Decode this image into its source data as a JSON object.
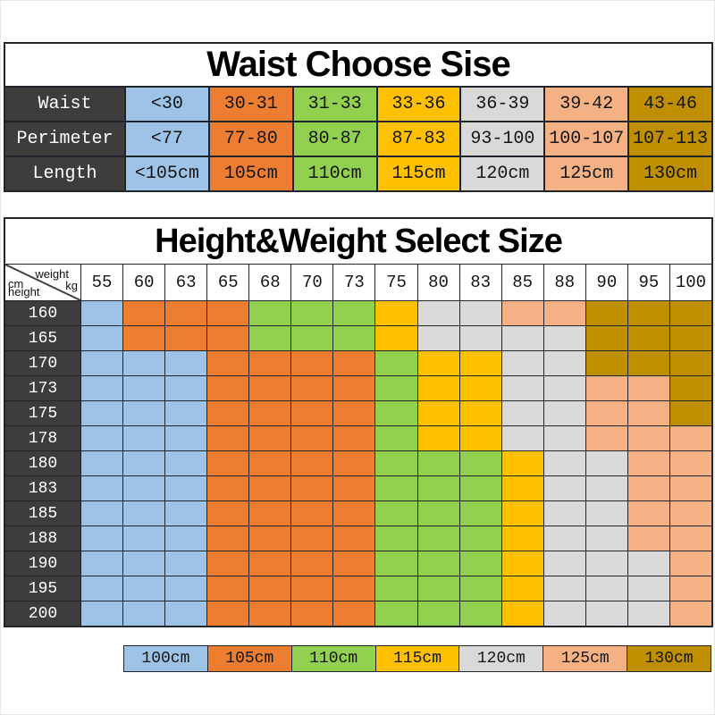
{
  "colors": {
    "blue": "#9DC3E6",
    "orange": "#ED7D31",
    "green": "#92D050",
    "yellow": "#FFC000",
    "gray": "#D9D9D9",
    "peach": "#F4B183",
    "olive": "#BF8F00",
    "label_dark": "#3D3D3D",
    "grid_line": "#20242B"
  },
  "waist_table": {
    "title": "Waist Choose Sise",
    "column_colors": [
      "blue",
      "orange",
      "green",
      "yellow",
      "gray",
      "peach",
      "olive"
    ],
    "rows": [
      {
        "label": "Waist",
        "values": [
          "<30",
          "30-31",
          "31-33",
          "33-36",
          "36-39",
          "39-42",
          "43-46"
        ]
      },
      {
        "label": "Perimeter",
        "values": [
          "<77",
          "77-80",
          "80-87",
          "87-83",
          "93-100",
          "100-107",
          "107-113"
        ]
      },
      {
        "label": "Length",
        "values": [
          "<105cm",
          "105cm",
          "110cm",
          "115cm",
          "120cm",
          "125cm",
          "130cm"
        ]
      }
    ]
  },
  "size_grid": {
    "title": "Height&Weight Select Size",
    "corner": {
      "weight_label": "weight",
      "kg_label": "kg",
      "cm_label": "cm",
      "height_label": "height"
    },
    "weights": [
      "55",
      "60",
      "63",
      "65",
      "68",
      "70",
      "73",
      "75",
      "80",
      "83",
      "85",
      "88",
      "90",
      "95",
      "100"
    ],
    "heights": [
      "160",
      "165",
      "170",
      "173",
      "175",
      "178",
      "180",
      "183",
      "185",
      "188",
      "190",
      "195",
      "200"
    ],
    "cells": [
      [
        "blue",
        "orange",
        "orange",
        "orange",
        "green",
        "green",
        "green",
        "yellow",
        "gray",
        "gray",
        "peach",
        "peach",
        "olive",
        "olive",
        "olive"
      ],
      [
        "blue",
        "orange",
        "orange",
        "orange",
        "green",
        "green",
        "green",
        "yellow",
        "gray",
        "gray",
        "gray",
        "gray",
        "olive",
        "olive",
        "olive"
      ],
      [
        "blue",
        "blue",
        "blue",
        "orange",
        "orange",
        "orange",
        "orange",
        "green",
        "yellow",
        "yellow",
        "gray",
        "gray",
        "olive",
        "olive",
        "olive"
      ],
      [
        "blue",
        "blue",
        "blue",
        "orange",
        "orange",
        "orange",
        "orange",
        "green",
        "yellow",
        "yellow",
        "gray",
        "gray",
        "peach",
        "peach",
        "olive"
      ],
      [
        "blue",
        "blue",
        "blue",
        "orange",
        "orange",
        "orange",
        "orange",
        "green",
        "yellow",
        "yellow",
        "gray",
        "gray",
        "peach",
        "peach",
        "olive"
      ],
      [
        "blue",
        "blue",
        "blue",
        "orange",
        "orange",
        "orange",
        "orange",
        "green",
        "yellow",
        "yellow",
        "gray",
        "gray",
        "peach",
        "peach",
        "peach"
      ],
      [
        "blue",
        "blue",
        "blue",
        "orange",
        "orange",
        "orange",
        "orange",
        "green",
        "green",
        "green",
        "yellow",
        "gray",
        "gray",
        "peach",
        "peach"
      ],
      [
        "blue",
        "blue",
        "blue",
        "orange",
        "orange",
        "orange",
        "orange",
        "green",
        "green",
        "green",
        "yellow",
        "gray",
        "gray",
        "peach",
        "peach"
      ],
      [
        "blue",
        "blue",
        "blue",
        "orange",
        "orange",
        "orange",
        "orange",
        "green",
        "green",
        "green",
        "yellow",
        "gray",
        "gray",
        "peach",
        "peach"
      ],
      [
        "blue",
        "blue",
        "blue",
        "orange",
        "orange",
        "orange",
        "orange",
        "green",
        "green",
        "green",
        "yellow",
        "gray",
        "gray",
        "peach",
        "peach"
      ],
      [
        "blue",
        "blue",
        "blue",
        "orange",
        "orange",
        "orange",
        "orange",
        "green",
        "green",
        "green",
        "yellow",
        "gray",
        "gray",
        "gray",
        "peach"
      ],
      [
        "blue",
        "blue",
        "blue",
        "orange",
        "orange",
        "orange",
        "orange",
        "green",
        "green",
        "green",
        "yellow",
        "gray",
        "gray",
        "gray",
        "peach"
      ],
      [
        "blue",
        "blue",
        "blue",
        "orange",
        "orange",
        "orange",
        "orange",
        "green",
        "green",
        "green",
        "yellow",
        "gray",
        "gray",
        "gray",
        "peach"
      ]
    ]
  },
  "legend": {
    "items": [
      {
        "label": "100cm",
        "color": "blue"
      },
      {
        "label": "105cm",
        "color": "orange"
      },
      {
        "label": "110cm",
        "color": "green"
      },
      {
        "label": "115cm",
        "color": "yellow"
      },
      {
        "label": "120cm",
        "color": "gray"
      },
      {
        "label": "125cm",
        "color": "peach"
      },
      {
        "label": "130cm",
        "color": "olive"
      }
    ]
  },
  "chart_data": [
    {
      "type": "table",
      "title": "Waist Choose Sise",
      "rows": [
        [
          "Waist",
          "<30",
          "30-31",
          "31-33",
          "33-36",
          "36-39",
          "39-42",
          "43-46"
        ],
        [
          "Perimeter",
          "<77",
          "77-80",
          "80-87",
          "87-83",
          "93-100",
          "100-107",
          "107-113"
        ],
        [
          "Length",
          "<105cm",
          "105cm",
          "110cm",
          "115cm",
          "120cm",
          "125cm",
          "130cm"
        ]
      ]
    },
    {
      "type": "heatmap",
      "title": "Height&Weight Select Size",
      "xlabel": "weight kg",
      "ylabel": "cm height",
      "x": [
        55,
        60,
        63,
        65,
        68,
        70,
        73,
        75,
        80,
        83,
        85,
        88,
        90,
        95,
        100
      ],
      "y": [
        160,
        165,
        170,
        173,
        175,
        178,
        180,
        183,
        185,
        188,
        190,
        195,
        200
      ],
      "values": [
        [
          "100cm",
          "105cm",
          "105cm",
          "105cm",
          "110cm",
          "110cm",
          "110cm",
          "115cm",
          "120cm",
          "120cm",
          "125cm",
          "125cm",
          "130cm",
          "130cm",
          "130cm"
        ],
        [
          "100cm",
          "105cm",
          "105cm",
          "105cm",
          "110cm",
          "110cm",
          "110cm",
          "115cm",
          "120cm",
          "120cm",
          "120cm",
          "120cm",
          "130cm",
          "130cm",
          "130cm"
        ],
        [
          "100cm",
          "100cm",
          "100cm",
          "105cm",
          "105cm",
          "105cm",
          "105cm",
          "110cm",
          "115cm",
          "115cm",
          "120cm",
          "120cm",
          "130cm",
          "130cm",
          "130cm"
        ],
        [
          "100cm",
          "100cm",
          "100cm",
          "105cm",
          "105cm",
          "105cm",
          "105cm",
          "110cm",
          "115cm",
          "115cm",
          "120cm",
          "120cm",
          "125cm",
          "125cm",
          "130cm"
        ],
        [
          "100cm",
          "100cm",
          "100cm",
          "105cm",
          "105cm",
          "105cm",
          "105cm",
          "110cm",
          "115cm",
          "115cm",
          "120cm",
          "120cm",
          "125cm",
          "125cm",
          "130cm"
        ],
        [
          "100cm",
          "100cm",
          "100cm",
          "105cm",
          "105cm",
          "105cm",
          "105cm",
          "110cm",
          "115cm",
          "115cm",
          "120cm",
          "120cm",
          "125cm",
          "125cm",
          "125cm"
        ],
        [
          "100cm",
          "100cm",
          "100cm",
          "105cm",
          "105cm",
          "105cm",
          "105cm",
          "110cm",
          "110cm",
          "110cm",
          "115cm",
          "120cm",
          "120cm",
          "125cm",
          "125cm"
        ],
        [
          "100cm",
          "100cm",
          "100cm",
          "105cm",
          "105cm",
          "105cm",
          "105cm",
          "110cm",
          "110cm",
          "110cm",
          "115cm",
          "120cm",
          "120cm",
          "125cm",
          "125cm"
        ],
        [
          "100cm",
          "100cm",
          "100cm",
          "105cm",
          "105cm",
          "105cm",
          "105cm",
          "110cm",
          "110cm",
          "110cm",
          "115cm",
          "120cm",
          "120cm",
          "125cm",
          "125cm"
        ],
        [
          "100cm",
          "100cm",
          "100cm",
          "105cm",
          "105cm",
          "105cm",
          "105cm",
          "110cm",
          "110cm",
          "110cm",
          "115cm",
          "120cm",
          "120cm",
          "125cm",
          "125cm"
        ],
        [
          "100cm",
          "100cm",
          "100cm",
          "105cm",
          "105cm",
          "105cm",
          "105cm",
          "110cm",
          "110cm",
          "110cm",
          "115cm",
          "120cm",
          "120cm",
          "120cm",
          "125cm"
        ],
        [
          "100cm",
          "100cm",
          "100cm",
          "105cm",
          "105cm",
          "105cm",
          "105cm",
          "110cm",
          "110cm",
          "110cm",
          "115cm",
          "120cm",
          "120cm",
          "120cm",
          "125cm"
        ],
        [
          "100cm",
          "100cm",
          "100cm",
          "105cm",
          "105cm",
          "105cm",
          "105cm",
          "110cm",
          "110cm",
          "110cm",
          "115cm",
          "120cm",
          "120cm",
          "120cm",
          "125cm"
        ]
      ],
      "legend": [
        "100cm",
        "105cm",
        "110cm",
        "115cm",
        "120cm",
        "125cm",
        "130cm"
      ],
      "legend_position": "bottom"
    }
  ]
}
